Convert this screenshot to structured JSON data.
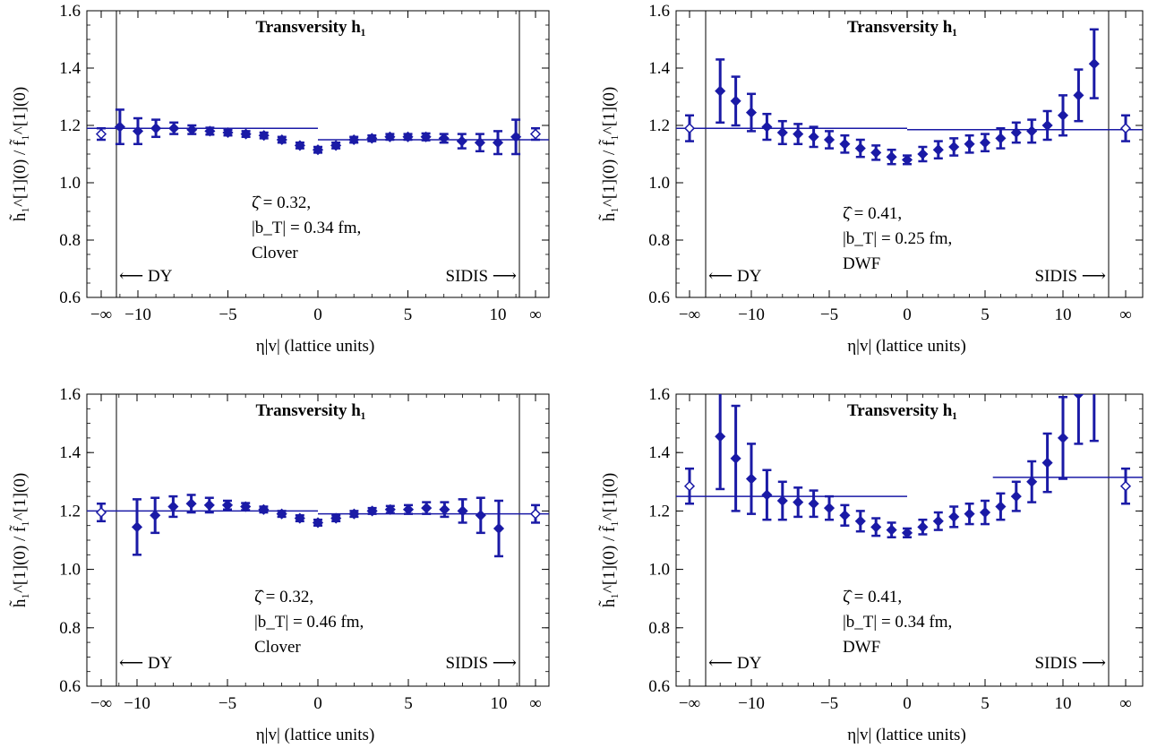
{
  "chart_data": [
    {
      "type": "scatter",
      "title": "Transversity h₁",
      "ylabel": "h̃₁^[1](0) / f̃₁^[1](0)",
      "xlabel": "η|v|  (lattice units)",
      "xticklabels": [
        "−∞",
        "−10",
        "−5",
        "0",
        "5",
        "10",
        "∞"
      ],
      "yticks": [
        "0.6",
        "0.8",
        "1.0",
        "1.2",
        "1.4",
        "1.6"
      ],
      "ylim": [
        0.6,
        1.6
      ],
      "annotations": [
        "ζ̂ = 0.32,",
        "|b_T| = 0.34 fm,",
        "Clover"
      ],
      "dy_label": "⟵ DY",
      "sidis_label": "SIDIS ⟶",
      "x": [
        -11,
        -10,
        -9,
        -8,
        -7,
        -6,
        -5,
        -4,
        -3,
        -2,
        -1,
        0,
        1,
        2,
        3,
        4,
        5,
        6,
        7,
        8,
        9,
        10,
        11
      ],
      "y": [
        1.195,
        1.18,
        1.19,
        1.19,
        1.185,
        1.18,
        1.175,
        1.17,
        1.165,
        1.15,
        1.13,
        1.115,
        1.13,
        1.15,
        1.155,
        1.16,
        1.16,
        1.16,
        1.155,
        1.145,
        1.14,
        1.14,
        1.16
      ],
      "err": [
        0.06,
        0.045,
        0.03,
        0.02,
        0.015,
        0.012,
        0.01,
        0.01,
        0.01,
        0.01,
        0.01,
        0.01,
        0.01,
        0.01,
        0.01,
        0.01,
        0.01,
        0.012,
        0.015,
        0.025,
        0.03,
        0.04,
        0.06
      ],
      "limit_left": {
        "value": 1.17,
        "err": 0.02
      },
      "limit_right": {
        "value": 1.17,
        "err": 0.02
      },
      "fit_left": 1.19,
      "fit_right": 1.15,
      "grid": false
    },
    {
      "type": "scatter",
      "title": "Transversity h₁",
      "ylabel": "h̃₁^[1](0) / f̃₁^[1](0)",
      "xlabel": "η|v|  (lattice units)",
      "xticklabels": [
        "−∞",
        "−10",
        "−5",
        "0",
        "5",
        "10",
        "∞"
      ],
      "yticks": [
        "0.6",
        "0.8",
        "1.0",
        "1.2",
        "1.4",
        "1.6"
      ],
      "ylim": [
        0.6,
        1.6
      ],
      "annotations": [
        "ζ̂ = 0.41,",
        "|b_T| = 0.25 fm,",
        "DWF"
      ],
      "dy_label": "⟵ DY",
      "sidis_label": "SIDIS ⟶",
      "x": [
        -12,
        -11,
        -10,
        -9,
        -8,
        -7,
        -6,
        -5,
        -4,
        -3,
        -2,
        -1,
        0,
        1,
        2,
        3,
        4,
        5,
        6,
        7,
        8,
        9,
        10,
        11,
        12
      ],
      "y": [
        1.32,
        1.285,
        1.245,
        1.195,
        1.175,
        1.17,
        1.16,
        1.15,
        1.135,
        1.12,
        1.105,
        1.09,
        1.08,
        1.1,
        1.115,
        1.125,
        1.135,
        1.14,
        1.155,
        1.175,
        1.18,
        1.2,
        1.235,
        1.305,
        1.415
      ],
      "err": [
        0.11,
        0.085,
        0.065,
        0.045,
        0.04,
        0.035,
        0.035,
        0.03,
        0.03,
        0.03,
        0.025,
        0.025,
        0.015,
        0.025,
        0.03,
        0.03,
        0.03,
        0.03,
        0.035,
        0.035,
        0.04,
        0.05,
        0.07,
        0.09,
        0.12
      ],
      "limit_left": {
        "value": 1.19,
        "err": 0.045
      },
      "limit_right": {
        "value": 1.19,
        "err": 0.045
      },
      "fit_left": 1.19,
      "fit_right": 1.185,
      "grid": false
    },
    {
      "type": "scatter",
      "title": "Transversity h₁",
      "ylabel": "h̃₁^[1](0) / f̃₁^[1](0)",
      "xlabel": "η|v|  (lattice units)",
      "xticklabels": [
        "−∞",
        "−10",
        "−5",
        "0",
        "5",
        "10",
        "∞"
      ],
      "yticks": [
        "0.6",
        "0.8",
        "1.0",
        "1.2",
        "1.4",
        "1.6"
      ],
      "ylim": [
        0.6,
        1.6
      ],
      "annotations": [
        "ζ̂ = 0.32,",
        "|b_T| = 0.46 fm,",
        "Clover"
      ],
      "dy_label": "⟵ DY",
      "sidis_label": "SIDIS ⟶",
      "x": [
        -10,
        -9,
        -8,
        -7,
        -6,
        -5,
        -4,
        -3,
        -2,
        -1,
        0,
        1,
        2,
        3,
        4,
        5,
        6,
        7,
        8,
        9,
        10
      ],
      "y": [
        1.145,
        1.185,
        1.215,
        1.225,
        1.22,
        1.22,
        1.215,
        1.205,
        1.19,
        1.175,
        1.16,
        1.175,
        1.19,
        1.2,
        1.205,
        1.205,
        1.21,
        1.205,
        1.2,
        1.185,
        1.14
      ],
      "err": [
        0.095,
        0.06,
        0.035,
        0.03,
        0.025,
        0.015,
        0.012,
        0.01,
        0.01,
        0.01,
        0.01,
        0.01,
        0.01,
        0.01,
        0.012,
        0.015,
        0.02,
        0.025,
        0.04,
        0.06,
        0.095
      ],
      "limit_left": {
        "value": 1.195,
        "err": 0.03
      },
      "limit_right": {
        "value": 1.19,
        "err": 0.03
      },
      "fit_left": 1.2,
      "fit_right": 1.19,
      "grid": false
    },
    {
      "type": "scatter",
      "title": "Transversity h₁",
      "ylabel": "h̃₁^[1](0) / f̃₁^[1](0)",
      "xlabel": "η|v|  (lattice units)",
      "xticklabels": [
        "−∞",
        "−10",
        "−5",
        "0",
        "5",
        "10",
        "∞"
      ],
      "yticks": [
        "0.6",
        "0.8",
        "1.0",
        "1.2",
        "1.4",
        "1.6"
      ],
      "ylim": [
        0.6,
        1.6
      ],
      "annotations": [
        "ζ̂ = 0.41,",
        "|b_T| = 0.34 fm,",
        "DWF"
      ],
      "dy_label": "⟵ DY",
      "sidis_label": "SIDIS ⟶",
      "x": [
        -12,
        -11,
        -10,
        -9,
        -8,
        -7,
        -6,
        -5,
        -4,
        -3,
        -2,
        -1,
        0,
        1,
        2,
        3,
        4,
        5,
        6,
        7,
        8,
        9,
        10,
        11,
        12
      ],
      "y": [
        1.455,
        1.38,
        1.31,
        1.255,
        1.235,
        1.23,
        1.225,
        1.21,
        1.185,
        1.165,
        1.145,
        1.135,
        1.125,
        1.145,
        1.165,
        1.18,
        1.19,
        1.195,
        1.215,
        1.25,
        1.3,
        1.365,
        1.45,
        1.6,
        1.62
      ],
      "err": [
        0.18,
        0.18,
        0.12,
        0.085,
        0.065,
        0.05,
        0.045,
        0.04,
        0.035,
        0.035,
        0.03,
        0.025,
        0.015,
        0.025,
        0.03,
        0.035,
        0.035,
        0.04,
        0.045,
        0.05,
        0.07,
        0.1,
        0.14,
        0.17,
        0.18
      ],
      "limit_left": {
        "value": 1.285,
        "err": 0.06
      },
      "limit_right": {
        "value": 1.285,
        "err": 0.06
      },
      "fit_left": 1.25,
      "fit_right": 1.315,
      "grid": false
    }
  ]
}
